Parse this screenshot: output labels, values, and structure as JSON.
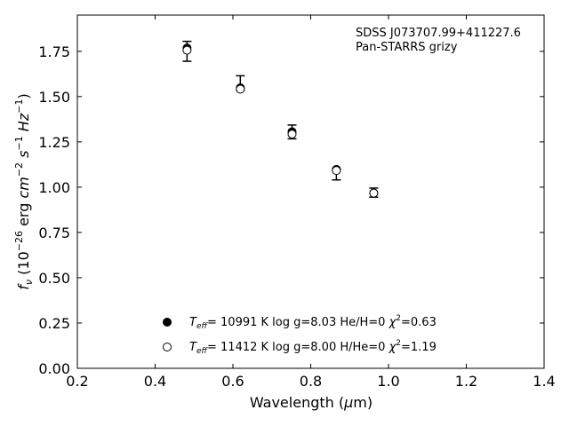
{
  "chart_data": {
    "type": "scatter",
    "annotation": [
      "SDSS J073707.99+411227.6",
      "Pan-STARRS grizy"
    ],
    "xlabel": {
      "prefix": "Wavelength (",
      "sym": "μ",
      "suffix": "m)"
    },
    "ylabel": "",
    "xlim": [
      0.2,
      1.4
    ],
    "ylim": [
      0.0,
      1.95
    ],
    "xticks": [
      {
        "value": 0.2,
        "label": "0.2"
      },
      {
        "value": 0.4,
        "label": "0.4"
      },
      {
        "value": 0.6,
        "label": "0.6"
      },
      {
        "value": 0.8,
        "label": "0.8"
      },
      {
        "value": 1.0,
        "label": "1.0"
      },
      {
        "value": 1.2,
        "label": "1.2"
      },
      {
        "value": 1.4,
        "label": "1.4"
      }
    ],
    "yticks": [
      {
        "value": 0.0,
        "label": "0.00"
      },
      {
        "value": 0.25,
        "label": "0.25"
      },
      {
        "value": 0.5,
        "label": "0.50"
      },
      {
        "value": 0.75,
        "label": "0.75"
      },
      {
        "value": 1.0,
        "label": "1.00"
      },
      {
        "value": 1.25,
        "label": "1.25"
      },
      {
        "value": 1.5,
        "label": "1.50"
      },
      {
        "value": 1.75,
        "label": "1.75"
      }
    ],
    "grid": false,
    "legend_position": "lower-center",
    "observed": {
      "x": [
        0.482,
        0.619,
        0.752,
        0.866,
        0.962
      ],
      "y": [
        1.75,
        1.575,
        1.305,
        1.07,
        0.97
      ],
      "err": [
        0.055,
        0.04,
        0.038,
        0.03,
        0.025
      ]
    },
    "series": [
      {
        "marker": "filled-circle",
        "legend": {
          "T": "T",
          "sub": "eff",
          "rest": "= 10991 K  log g=8.03  He/H=0  ",
          "chi": "χ",
          "chival": "=0.63"
        },
        "x": [
          0.482,
          0.619,
          0.752,
          0.866,
          0.962
        ],
        "y": [
          1.768,
          1.548,
          1.306,
          1.098,
          0.968
        ]
      },
      {
        "marker": "open-circle",
        "legend": {
          "T": "T",
          "sub": "eff",
          "rest": "= 11412 K  log g=8.00  H/He=0  ",
          "chi": "χ",
          "chival": "=1.19"
        },
        "x": [
          0.482,
          0.619,
          0.752,
          0.866,
          0.962
        ],
        "y": [
          1.756,
          1.541,
          1.293,
          1.092,
          0.967
        ]
      }
    ]
  }
}
